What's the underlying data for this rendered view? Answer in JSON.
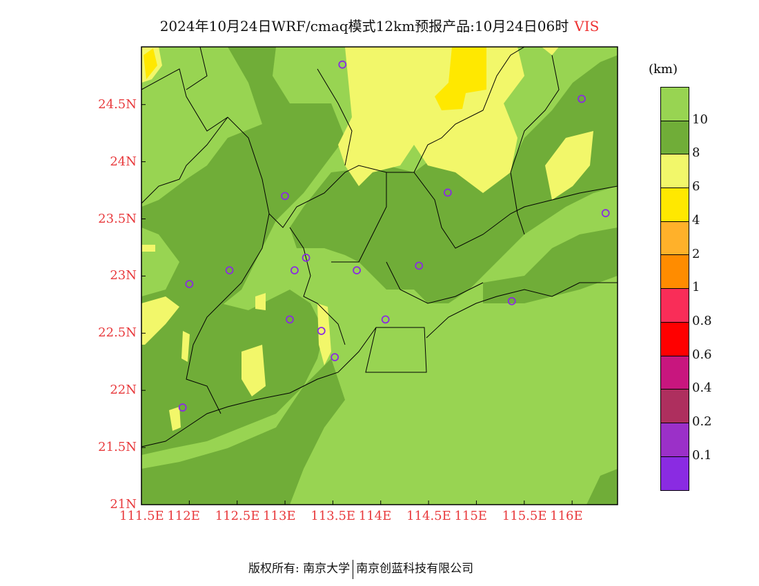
{
  "title": {
    "text": "2024年10月24日WRF/cmaq模式12km预报产品:10月24日06时",
    "variable": "VIS"
  },
  "map": {
    "lon_labels": [
      "111.5E",
      "112E",
      "112.5E",
      "113E",
      "113.5E",
      "114E",
      "114.5E",
      "115E",
      "115.5E",
      "116E"
    ],
    "lat_labels": [
      "21N",
      "21.5N",
      "22N",
      "22.5N",
      "23N",
      "23.5N",
      "24N",
      "24.5N"
    ],
    "stations": [
      [
        113.6,
        24.85
      ],
      [
        116.1,
        24.55
      ],
      [
        113.0,
        23.7
      ],
      [
        114.7,
        23.73
      ],
      [
        116.35,
        23.55
      ],
      [
        112.0,
        22.93
      ],
      [
        112.42,
        23.05
      ],
      [
        113.1,
        23.05
      ],
      [
        113.22,
        23.16
      ],
      [
        113.75,
        23.05
      ],
      [
        114.4,
        23.09
      ],
      [
        115.37,
        22.78
      ],
      [
        113.05,
        22.62
      ],
      [
        114.05,
        22.62
      ],
      [
        113.38,
        22.52
      ],
      [
        113.52,
        22.29
      ],
      [
        111.93,
        21.85
      ]
    ],
    "colors": {
      "gt10": "#98d452",
      "c8_10": "#70ad38",
      "c6_8": "#f2f76a",
      "c4_6": "#ffe800",
      "station": "#8a2be2"
    }
  },
  "colorbar": {
    "unit": "(km)",
    "colors": [
      "#98d452",
      "#70ad38",
      "#f2f76a",
      "#ffe800",
      "#ffb12a",
      "#ff8c00",
      "#f92d58",
      "#ff0000",
      "#c8167e",
      "#ae2f5e",
      "#9b30c8",
      "#8a2be2"
    ],
    "labels": [
      "10",
      "8",
      "6",
      "4",
      "2",
      "1",
      "0.8",
      "0.6",
      "0.4",
      "0.2",
      "0.1"
    ]
  },
  "footer": {
    "left": "版权所有: 南京大学",
    "right": "南京创蓝科技有限公司"
  }
}
